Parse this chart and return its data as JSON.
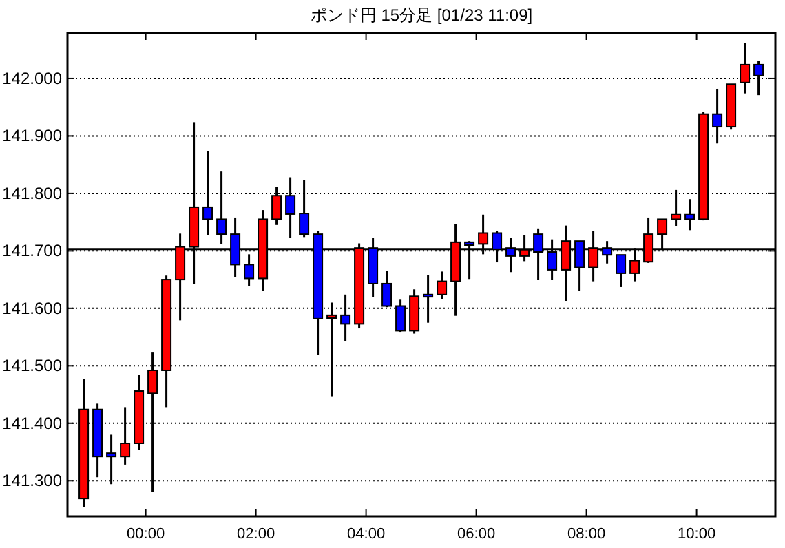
{
  "chart_data": {
    "type": "candlestick",
    "title": "ポンド円 15分足 [01/23 11:09]",
    "x": [
      -1.125,
      -0.875,
      -0.625,
      -0.375,
      -0.125,
      0.125,
      0.375,
      0.625,
      0.875,
      1.125,
      1.375,
      1.625,
      1.875,
      2.125,
      2.375,
      2.625,
      2.875,
      3.125,
      3.375,
      3.625,
      3.875,
      4.125,
      4.375,
      4.625,
      4.875,
      5.125,
      5.375,
      5.625,
      5.875,
      6.125,
      6.375,
      6.625,
      6.875,
      7.125,
      7.375,
      7.625,
      7.875,
      8.125,
      8.375,
      8.625,
      8.875,
      9.125,
      9.375,
      9.625,
      9.875,
      10.125,
      10.375,
      10.625,
      10.875,
      11.125
    ],
    "ohlc": [
      [
        141.269,
        141.477,
        141.254,
        141.424
      ],
      [
        141.424,
        141.434,
        141.306,
        141.342
      ],
      [
        141.348,
        141.38,
        141.294,
        141.342
      ],
      [
        141.342,
        141.428,
        141.328,
        141.365
      ],
      [
        141.365,
        141.484,
        141.353,
        141.456
      ],
      [
        141.452,
        141.523,
        141.28,
        141.492
      ],
      [
        141.492,
        141.657,
        141.428,
        141.65
      ],
      [
        141.65,
        141.73,
        141.579,
        141.707
      ],
      [
        141.707,
        141.924,
        141.642,
        141.776
      ],
      [
        141.776,
        141.874,
        141.728,
        141.755
      ],
      [
        141.755,
        141.838,
        141.712,
        141.729
      ],
      [
        141.729,
        141.758,
        141.654,
        141.676
      ],
      [
        141.676,
        141.694,
        141.639,
        141.652
      ],
      [
        141.652,
        141.771,
        141.63,
        141.755
      ],
      [
        141.755,
        141.811,
        141.745,
        141.796
      ],
      [
        141.796,
        141.828,
        141.722,
        141.764
      ],
      [
        141.765,
        141.823,
        141.724,
        141.729
      ],
      [
        141.729,
        141.734,
        141.519,
        141.582
      ],
      [
        141.583,
        141.61,
        141.447,
        141.588
      ],
      [
        141.588,
        141.624,
        141.543,
        141.573
      ],
      [
        141.573,
        141.713,
        141.565,
        141.705
      ],
      [
        141.705,
        141.723,
        141.62,
        141.643
      ],
      [
        141.643,
        141.665,
        141.602,
        141.604
      ],
      [
        141.604,
        141.615,
        141.559,
        141.561
      ],
      [
        141.561,
        141.633,
        141.556,
        141.621
      ],
      [
        141.624,
        141.658,
        141.575,
        141.62
      ],
      [
        141.624,
        141.664,
        141.616,
        141.647
      ],
      [
        141.647,
        141.747,
        141.587,
        141.715
      ],
      [
        141.715,
        141.717,
        141.651,
        141.71
      ],
      [
        141.712,
        141.763,
        141.694,
        141.731
      ],
      [
        141.731,
        141.734,
        141.68,
        141.703
      ],
      [
        141.705,
        141.723,
        141.663,
        141.691
      ],
      [
        141.691,
        141.727,
        141.682,
        141.702
      ],
      [
        141.729,
        141.739,
        141.649,
        141.698
      ],
      [
        141.698,
        141.72,
        141.649,
        141.667
      ],
      [
        141.667,
        141.744,
        141.613,
        141.717
      ],
      [
        141.717,
        141.717,
        141.63,
        141.671
      ],
      [
        141.671,
        141.735,
        141.647,
        141.705
      ],
      [
        141.705,
        141.717,
        141.678,
        141.693
      ],
      [
        141.693,
        141.693,
        141.637,
        141.661
      ],
      [
        141.661,
        141.705,
        141.647,
        141.683
      ],
      [
        141.681,
        141.758,
        141.679,
        141.729
      ],
      [
        141.729,
        141.755,
        141.703,
        141.755
      ],
      [
        141.755,
        141.806,
        141.743,
        141.763
      ],
      [
        141.763,
        141.79,
        141.736,
        141.755
      ],
      [
        141.755,
        141.942,
        141.753,
        141.938
      ],
      [
        141.938,
        141.982,
        141.887,
        141.916
      ],
      [
        141.916,
        141.99,
        141.911,
        141.99
      ],
      [
        141.993,
        142.062,
        141.974,
        142.024
      ],
      [
        142.024,
        142.031,
        141.971,
        142.005
      ]
    ],
    "colors": [
      "#ff0000",
      "#0000ff",
      "#0000ff",
      "#ff0000",
      "#ff0000",
      "#ff0000",
      "#ff0000",
      "#ff0000",
      "#ff0000",
      "#0000ff",
      "#0000ff",
      "#0000ff",
      "#0000ff",
      "#ff0000",
      "#ff0000",
      "#0000ff",
      "#0000ff",
      "#0000ff",
      "#ff0000",
      "#0000ff",
      "#ff0000",
      "#0000ff",
      "#0000ff",
      "#0000ff",
      "#ff0000",
      "#0000ff",
      "#ff0000",
      "#ff0000",
      "#0000ff",
      "#ff0000",
      "#0000ff",
      "#0000ff",
      "#ff0000",
      "#0000ff",
      "#0000ff",
      "#ff0000",
      "#0000ff",
      "#ff0000",
      "#0000ff",
      "#0000ff",
      "#ff0000",
      "#ff0000",
      "#ff0000",
      "#ff0000",
      "#0000ff",
      "#ff0000",
      "#0000ff",
      "#ff0000",
      "#ff0000",
      "#0000ff"
    ],
    "xlim": [
      -1.42,
      11.43
    ],
    "xticks": [
      {
        "value": 0,
        "label": "00:00"
      },
      {
        "value": 2,
        "label": "02:00"
      },
      {
        "value": 4,
        "label": "04:00"
      },
      {
        "value": 6,
        "label": "06:00"
      },
      {
        "value": 8,
        "label": "08:00"
      },
      {
        "value": 10,
        "label": "10:00"
      }
    ],
    "ylim": [
      141.238,
      142.079
    ],
    "yticks": [
      {
        "value": 141.3,
        "label": "141.300"
      },
      {
        "value": 141.4,
        "label": "141.400"
      },
      {
        "value": 141.5,
        "label": "141.500"
      },
      {
        "value": 141.6,
        "label": "141.600"
      },
      {
        "value": 141.7,
        "label": "141.700"
      },
      {
        "value": 141.8,
        "label": "141.800"
      },
      {
        "value": 141.9,
        "label": "141.900"
      },
      {
        "value": 142.0,
        "label": "142.000"
      }
    ],
    "grid": "y",
    "ref_lines": [
      {
        "axis": "y",
        "value": 141.703,
        "color": "#000000",
        "line_style": "solid"
      }
    ]
  }
}
